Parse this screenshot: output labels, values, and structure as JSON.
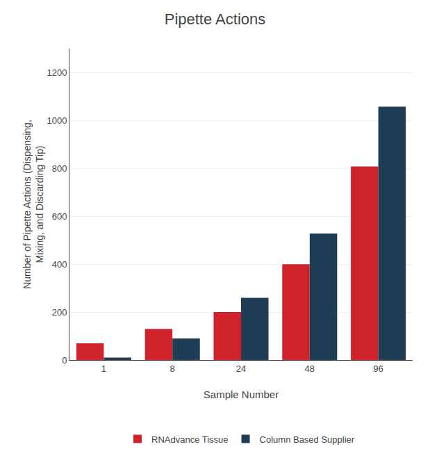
{
  "chart_data": {
    "type": "bar",
    "title": "Pipette Actions",
    "xlabel": "Sample Number",
    "ylabel": "Number of Pipette Actions (Dispensing,\nMixing, and Discarding Tip)",
    "categories": [
      1,
      8,
      24,
      48,
      96
    ],
    "series": [
      {
        "name": "RNAdvance Tissue",
        "color": "#D0222A",
        "values": [
          70,
          130,
          200,
          400,
          808
        ]
      },
      {
        "name": "Column Based Supplier",
        "color": "#1F3D54",
        "values": [
          10,
          90,
          260,
          528,
          1058
        ]
      }
    ],
    "ylim": [
      0,
      1300
    ],
    "yticks": [
      0,
      200,
      400,
      600,
      800,
      1000,
      1200
    ],
    "grid": true,
    "legend": "bottom"
  }
}
